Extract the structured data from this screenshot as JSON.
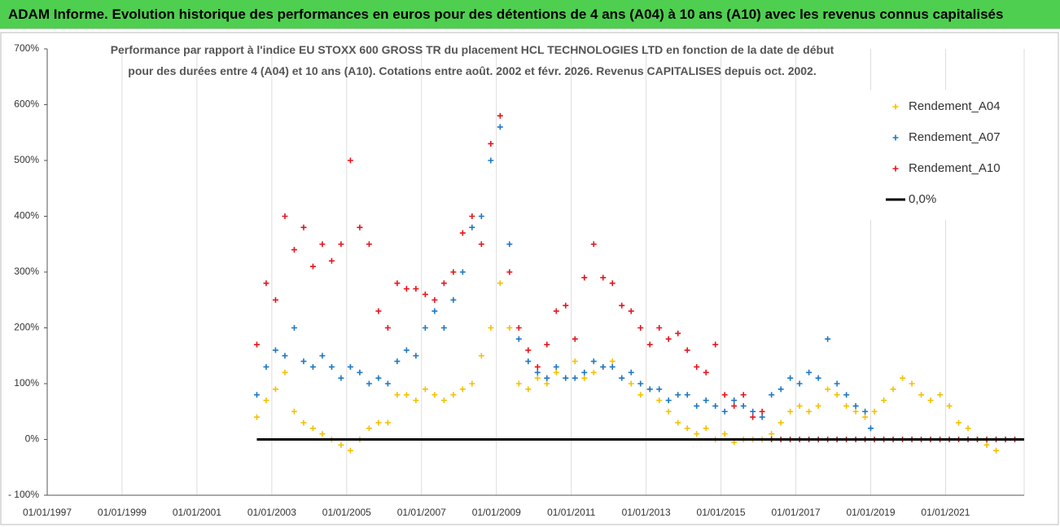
{
  "header": "ADAM Informe. Evolution historique des performances en euros pour des détentions de 4 ans (A04) à 10 ans (A10) avec les revenus connus capitalisés",
  "chart_data": {
    "type": "scatter",
    "title": "Performance par rapport à l'indice EU STOXX 600 GROSS TR  du placement HCL TECHNOLOGIES LTD en fonction de la date de début pour des durées entre 4 (A04) et 10 ans (A10).  Cotations entre août. 2002 et févr. 2026. Revenus CAPITALISES depuis oct. 2002.",
    "xlim": [
      1997,
      2023.1
    ],
    "xticks": [
      {
        "value": 1997,
        "label": "01/01/1997"
      },
      {
        "value": 1999,
        "label": "01/01/1999"
      },
      {
        "value": 2001,
        "label": "01/01/2001"
      },
      {
        "value": 2003,
        "label": "01/01/2003"
      },
      {
        "value": 2005,
        "label": "01/01/2005"
      },
      {
        "value": 2007,
        "label": "01/01/2007"
      },
      {
        "value": 2009,
        "label": "01/01/2009"
      },
      {
        "value": 2011,
        "label": "01/01/2011"
      },
      {
        "value": 2013,
        "label": "01/01/2013"
      },
      {
        "value": 2015,
        "label": "01/01/2015"
      },
      {
        "value": 2017,
        "label": "01/01/2017"
      },
      {
        "value": 2019,
        "label": "01/01/2019"
      },
      {
        "value": 2021,
        "label": "01/01/2021"
      }
    ],
    "ylim": [
      -100,
      700
    ],
    "yticks": [
      {
        "value": -100,
        "label": "- 100%"
      },
      {
        "value": 0,
        "label": "0%"
      },
      {
        "value": 100,
        "label": "100%"
      },
      {
        "value": 200,
        "label": "200%"
      },
      {
        "value": 300,
        "label": "300%"
      },
      {
        "value": 400,
        "label": "400%"
      },
      {
        "value": 500,
        "label": "500%"
      },
      {
        "value": 600,
        "label": "600%"
      },
      {
        "value": 700,
        "label": "700%"
      }
    ],
    "grid": true,
    "series": [
      {
        "name": "Rendement_A04",
        "color": "#f5c000",
        "x": [
          2002.6,
          2002.85,
          2003.1,
          2003.35,
          2003.6,
          2003.85,
          2004.1,
          2004.35,
          2004.6,
          2004.85,
          2005.1,
          2005.35,
          2005.6,
          2005.85,
          2006.1,
          2006.35,
          2006.6,
          2006.85,
          2007.1,
          2007.35,
          2007.6,
          2007.85,
          2008.1,
          2008.35,
          2008.6,
          2008.85,
          2009.1,
          2009.35,
          2009.6,
          2009.85,
          2010.1,
          2010.35,
          2010.6,
          2010.85,
          2011.1,
          2011.35,
          2011.6,
          2011.85,
          2012.1,
          2012.35,
          2012.6,
          2012.85,
          2013.1,
          2013.35,
          2013.6,
          2013.85,
          2014.1,
          2014.35,
          2014.6,
          2014.85,
          2015.1,
          2015.35,
          2015.6,
          2015.85,
          2016.1,
          2016.35,
          2016.6,
          2016.85,
          2017.1,
          2017.35,
          2017.6,
          2017.85,
          2018.1,
          2018.35,
          2018.6,
          2018.85,
          2019.1,
          2019.35,
          2019.6,
          2019.85,
          2020.1,
          2020.35,
          2020.6,
          2020.85,
          2021.1,
          2021.35,
          2021.6,
          2021.85,
          2022.1,
          2022.35
        ],
        "values": [
          40,
          70,
          90,
          120,
          50,
          30,
          20,
          10,
          0,
          -10,
          -20,
          0,
          20,
          30,
          30,
          80,
          80,
          70,
          90,
          80,
          70,
          80,
          90,
          100,
          150,
          200,
          280,
          200,
          100,
          90,
          110,
          100,
          120,
          110,
          140,
          110,
          120,
          130,
          140,
          110,
          100,
          80,
          90,
          70,
          50,
          30,
          20,
          10,
          20,
          0,
          10,
          -5,
          0,
          0,
          0,
          10,
          30,
          50,
          60,
          50,
          60,
          90,
          80,
          60,
          50,
          40,
          50,
          70,
          90,
          110,
          100,
          80,
          70,
          80,
          60,
          30,
          20,
          0,
          -10,
          -20
        ]
      },
      {
        "name": "Rendement_A07",
        "color": "#1f77c4",
        "x": [
          2002.6,
          2002.85,
          2003.1,
          2003.35,
          2003.6,
          2003.85,
          2004.1,
          2004.35,
          2004.6,
          2004.85,
          2005.1,
          2005.35,
          2005.6,
          2005.85,
          2006.1,
          2006.35,
          2006.6,
          2006.85,
          2007.1,
          2007.35,
          2007.6,
          2007.85,
          2008.1,
          2008.35,
          2008.6,
          2008.85,
          2009.1,
          2009.35,
          2009.6,
          2009.85,
          2010.1,
          2010.35,
          2010.6,
          2010.85,
          2011.1,
          2011.35,
          2011.6,
          2011.85,
          2012.1,
          2012.35,
          2012.6,
          2012.85,
          2013.1,
          2013.35,
          2013.6,
          2013.85,
          2014.1,
          2014.35,
          2014.6,
          2014.85,
          2015.1,
          2015.35,
          2015.6,
          2015.85,
          2016.1,
          2016.35,
          2016.6,
          2016.85,
          2017.1,
          2017.35,
          2017.6,
          2017.85,
          2018.1,
          2018.35,
          2018.6,
          2018.85,
          2019.0
        ],
        "values": [
          80,
          130,
          160,
          150,
          200,
          140,
          130,
          150,
          130,
          110,
          130,
          120,
          100,
          110,
          100,
          140,
          160,
          150,
          200,
          230,
          200,
          250,
          300,
          380,
          400,
          500,
          560,
          350,
          180,
          140,
          120,
          110,
          130,
          110,
          110,
          120,
          140,
          130,
          130,
          110,
          120,
          100,
          90,
          90,
          70,
          80,
          80,
          60,
          70,
          60,
          50,
          70,
          60,
          50,
          40,
          80,
          90,
          110,
          100,
          120,
          110,
          180,
          100,
          80,
          60,
          50,
          20
        ]
      },
      {
        "name": "Rendement_A10",
        "color": "#e8141c",
        "x": [
          2002.6,
          2002.85,
          2003.1,
          2003.35,
          2003.6,
          2003.85,
          2004.1,
          2004.35,
          2004.6,
          2004.85,
          2005.1,
          2005.35,
          2005.6,
          2005.85,
          2006.1,
          2006.35,
          2006.6,
          2006.85,
          2007.1,
          2007.35,
          2007.6,
          2007.85,
          2008.1,
          2008.35,
          2008.6,
          2008.85,
          2009.1,
          2009.35,
          2009.6,
          2009.85,
          2010.1,
          2010.35,
          2010.6,
          2010.85,
          2011.1,
          2011.35,
          2011.6,
          2011.85,
          2012.1,
          2012.35,
          2012.6,
          2012.85,
          2013.1,
          2013.35,
          2013.6,
          2013.85,
          2014.1,
          2014.35,
          2014.6,
          2014.85,
          2015.1,
          2015.35,
          2015.6,
          2015.85,
          2016.1,
          2016.35,
          2016.6,
          2016.85,
          2017.1,
          2017.35,
          2017.6,
          2017.85,
          2018.1,
          2018.35,
          2018.6,
          2018.85,
          2019.1,
          2019.35,
          2019.6,
          2019.85,
          2020.1,
          2020.35,
          2020.6,
          2020.85,
          2021.1,
          2021.35,
          2021.6,
          2021.85,
          2022.1,
          2022.35,
          2022.6,
          2022.85
        ],
        "values": [
          170,
          280,
          250,
          400,
          340,
          380,
          310,
          350,
          320,
          350,
          500,
          380,
          350,
          230,
          200,
          280,
          270,
          270,
          260,
          250,
          280,
          300,
          370,
          400,
          350,
          530,
          580,
          300,
          200,
          160,
          130,
          170,
          230,
          240,
          180,
          290,
          350,
          290,
          280,
          240,
          230,
          200,
          170,
          200,
          180,
          190,
          160,
          130,
          120,
          170,
          80,
          60,
          80,
          40,
          50,
          0,
          0,
          0,
          0,
          0,
          0,
          0,
          0,
          0,
          0,
          0,
          0,
          0,
          0,
          0,
          0,
          0,
          0,
          0,
          0,
          0,
          0,
          0,
          0,
          0,
          0,
          0
        ]
      },
      {
        "name": "0,0%",
        "color": "#000000",
        "kind": "line",
        "x": [
          2002.6,
          2023.1
        ],
        "values": [
          0,
          0
        ]
      }
    ]
  }
}
